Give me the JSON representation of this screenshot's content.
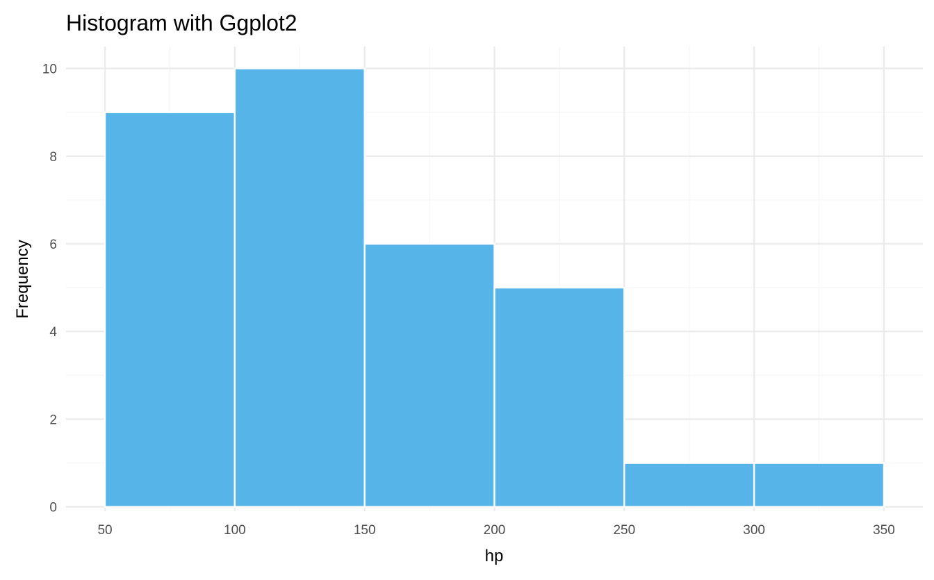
{
  "chart_data": {
    "type": "bar",
    "histogram": true,
    "title": "Histogram with Ggplot2",
    "xlabel": "hp",
    "ylabel": "Frequency",
    "bins": [
      {
        "start": 50,
        "end": 100,
        "count": 9
      },
      {
        "start": 100,
        "end": 150,
        "count": 10
      },
      {
        "start": 150,
        "end": 200,
        "count": 6
      },
      {
        "start": 200,
        "end": 250,
        "count": 5
      },
      {
        "start": 250,
        "end": 300,
        "count": 1
      },
      {
        "start": 300,
        "end": 350,
        "count": 1
      }
    ],
    "x_ticks": [
      50,
      100,
      150,
      200,
      250,
      300,
      350
    ],
    "x_tick_labels": [
      "50",
      "100",
      "150",
      "200",
      "250",
      "300",
      "350"
    ],
    "y_ticks": [
      0,
      2,
      4,
      6,
      8,
      10
    ],
    "y_tick_labels": [
      "0",
      "2",
      "4",
      "6",
      "8",
      "10"
    ],
    "xlim": [
      35,
      365
    ],
    "ylim": [
      -0.1,
      10.5
    ],
    "grid": true,
    "legend": "none",
    "colors": {
      "bar_fill": "#56B4E9",
      "bar_outline": "#FFFFFF",
      "grid_major": "#EBEBEB",
      "grid_minor": "#F5F5F5",
      "tick_text": "#4D4D4D",
      "title_text": "#000000"
    }
  }
}
